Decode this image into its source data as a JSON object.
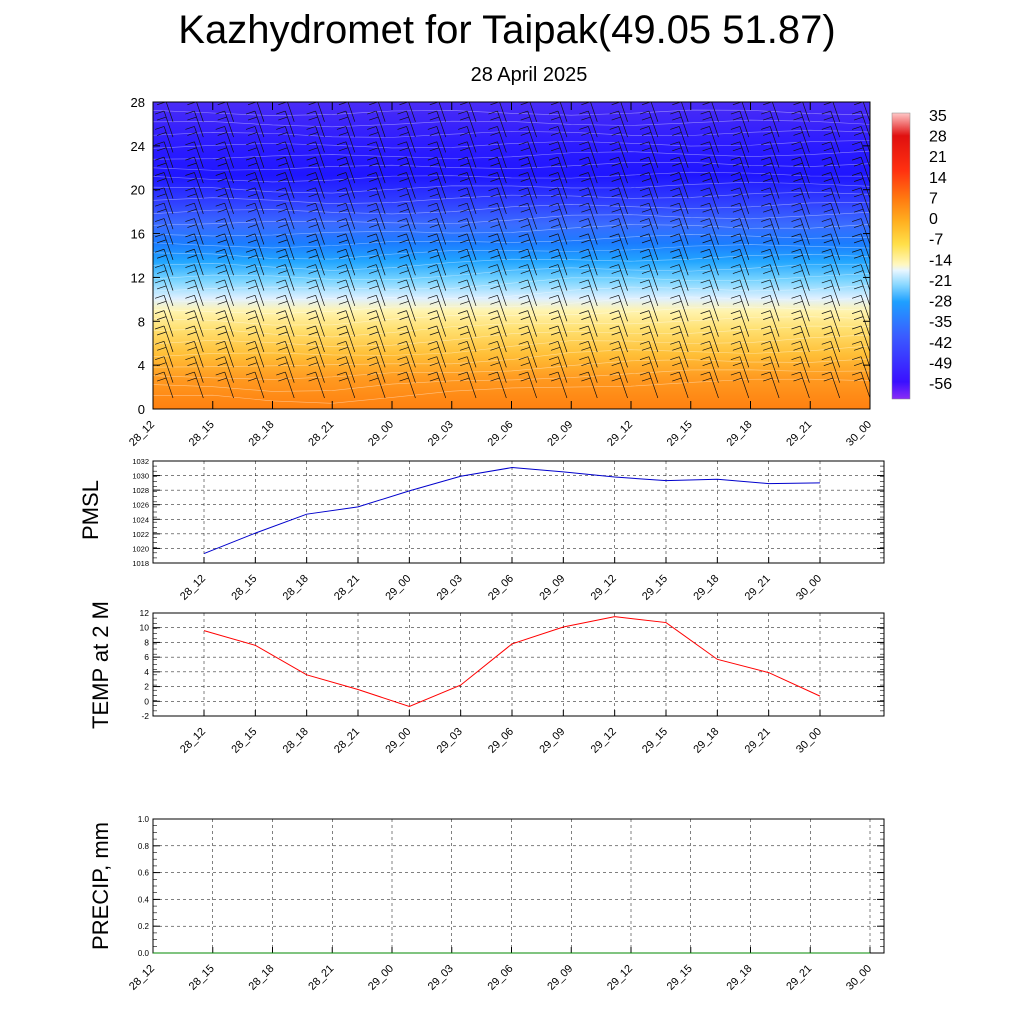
{
  "title": "Kazhydromet for Taipak(49.05 51.87)",
  "subtitle": "28 April 2025",
  "time_labels": [
    "28_12",
    "28_15",
    "28_18",
    "28_21",
    "29_00",
    "29_03",
    "29_06",
    "29_09",
    "29_12",
    "29_15",
    "29_18",
    "29_21",
    "30_00"
  ],
  "chart_data": [
    {
      "type": "heatmap",
      "name": "cross-section",
      "x": [
        "28_12",
        "28_15",
        "28_18",
        "28_21",
        "29_00",
        "29_03",
        "29_06",
        "29_09",
        "29_12",
        "29_15",
        "29_18",
        "29_21",
        "30_00"
      ],
      "ylim": [
        0,
        28
      ],
      "yticks": [
        0,
        4,
        8,
        12,
        16,
        20,
        24,
        28
      ],
      "colorbar_labels": [
        "35",
        "28",
        "21",
        "14",
        "7",
        "0",
        "-7",
        "-14",
        "-21",
        "-28",
        "-35",
        "-42",
        "-49",
        "-56"
      ],
      "colorbar_range": [
        -63,
        42
      ],
      "colors": {
        "cold": "#2a10ff",
        "mid_blue": "#1e8fff",
        "pale": "#d8ecff",
        "pale_yellow": "#fff3a8",
        "yellow": "#ffd64a",
        "orange": "#ff8a14"
      },
      "freezing_level": [
        9.3,
        9.4,
        9.1,
        9.0,
        9.4,
        9.8,
        10.3,
        10.8,
        11.0,
        11.1,
        11.2,
        11.4,
        11.6
      ],
      "grid": false,
      "wind_barbs": true
    },
    {
      "type": "line",
      "name": "PMSL",
      "ylabel": "PMSL",
      "x": [
        "28_12",
        "28_15",
        "28_18",
        "28_21",
        "29_00",
        "29_03",
        "29_06",
        "29_09",
        "29_12",
        "29_15",
        "29_18",
        "29_21",
        "30_00"
      ],
      "values": [
        1019.3,
        1022.1,
        1024.7,
        1025.7,
        1027.9,
        1029.9,
        1031.1,
        1030.5,
        1029.8,
        1029.3,
        1029.5,
        1028.9,
        1029.0
      ],
      "ylim": [
        1018,
        1032
      ],
      "yticks": [
        1018,
        1020,
        1022,
        1024,
        1026,
        1028,
        1030,
        1032
      ],
      "color": "#0000cc",
      "grid": true
    },
    {
      "type": "line",
      "name": "TEMP",
      "ylabel": "TEMP at 2 M",
      "x": [
        "28_12",
        "28_15",
        "28_18",
        "28_21",
        "29_00",
        "29_03",
        "29_06",
        "29_09",
        "29_12",
        "29_15",
        "29_18",
        "29_21",
        "30_00"
      ],
      "values": [
        9.6,
        7.6,
        3.6,
        1.6,
        -0.7,
        2.2,
        7.8,
        10.1,
        11.5,
        10.7,
        5.7,
        3.9,
        0.7
      ],
      "ylim": [
        -2,
        12
      ],
      "yticks": [
        -2,
        0,
        2,
        4,
        6,
        8,
        10,
        12
      ],
      "color": "#ff0000",
      "grid": true
    },
    {
      "type": "line",
      "name": "PRECIP",
      "ylabel": "PRECIP, mm",
      "x": [
        "28_12",
        "28_15",
        "28_18",
        "28_21",
        "29_00",
        "29_03",
        "29_06",
        "29_09",
        "29_12",
        "29_15",
        "29_18",
        "29_21",
        "30_00"
      ],
      "values": [
        0,
        0,
        0,
        0,
        0,
        0,
        0,
        0,
        0,
        0,
        0,
        0,
        0
      ],
      "ylim": [
        0,
        1
      ],
      "yticks": [
        "0.0",
        "0.2",
        "0.4",
        "0.6",
        "0.8",
        "1.0"
      ],
      "color": "#008800",
      "grid": true
    }
  ]
}
